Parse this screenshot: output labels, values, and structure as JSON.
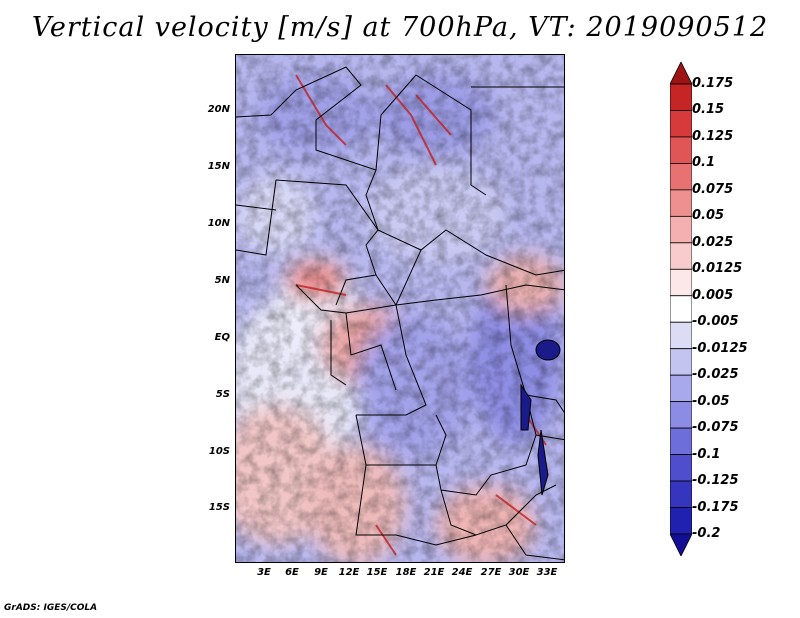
{
  "title": "Vertical velocity [m/s] at 700hPa, VT: 2019090512",
  "footer": "GrADS: IGES/COLA",
  "y_axis_labels": [
    "20N",
    "15N",
    "10N",
    "5N",
    "EQ",
    "5S",
    "10S",
    "15S"
  ],
  "x_axis_labels": [
    "3E",
    "6E",
    "9E",
    "12E",
    "15E",
    "18E",
    "21E",
    "24E",
    "27E",
    "30E",
    "33E"
  ],
  "colorbar": {
    "labels": [
      "0.175",
      "0.15",
      "0.125",
      "0.1",
      "0.075",
      "0.05",
      "0.025",
      "0.0125",
      "0.005",
      "-0.005",
      "-0.0125",
      "-0.025",
      "-0.05",
      "-0.075",
      "-0.1",
      "-0.125",
      "-0.175",
      "-0.2"
    ],
    "colors": [
      "#9e1313",
      "#c52525",
      "#d63a3a",
      "#e05555",
      "#e87272",
      "#ef9090",
      "#f4b0b0",
      "#f8cccc",
      "#fce8e8",
      "#ffffff",
      "#dcdcf4",
      "#c4c4f0",
      "#a8a8ec",
      "#8c8ce4",
      "#6e6eda",
      "#4f4fce",
      "#3535c0",
      "#2121b0",
      "#120e96"
    ]
  }
}
